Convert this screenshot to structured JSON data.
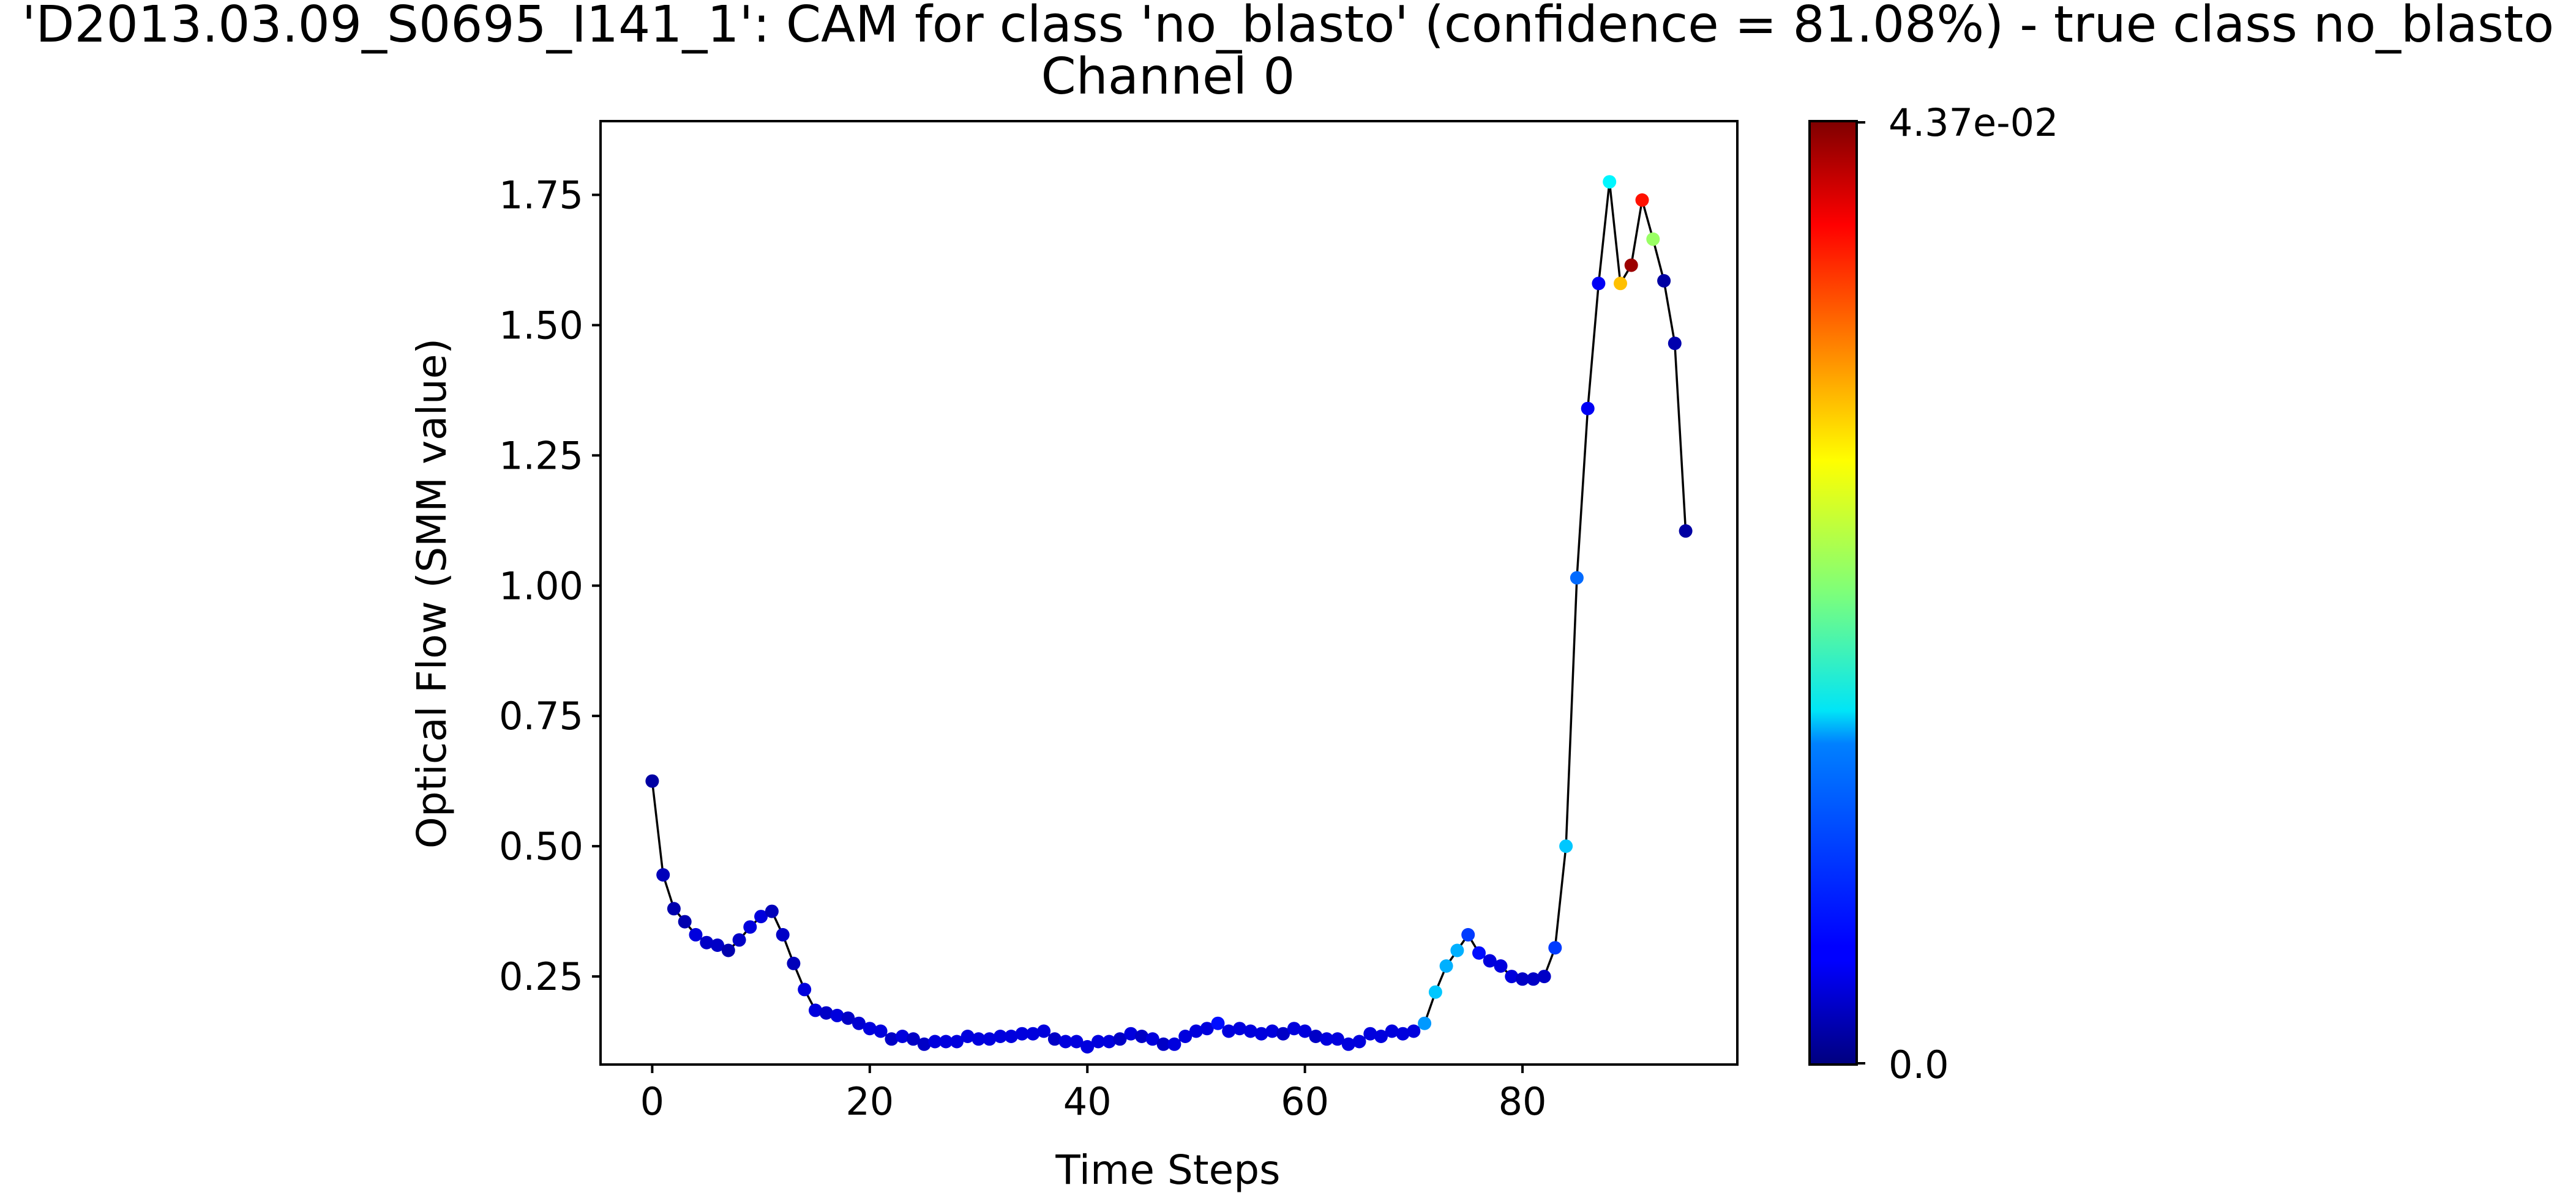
{
  "chart_data": {
    "type": "scatter",
    "title": "'D2013.03.09_S0695_I141_1': CAM for class 'no_blasto' (confidence = 81.08%) - true class no_blasto",
    "subtitle": "Channel 0",
    "xlabel": "Time Steps",
    "ylabel": "Optical Flow (SMM value)",
    "xlim": [
      -4.75,
      99.75
    ],
    "ylim": [
      0.081,
      1.8915
    ],
    "x_ticks": [
      0,
      20,
      40,
      60,
      80
    ],
    "y_ticks": [
      0.25,
      0.5,
      0.75,
      1.0,
      1.25,
      1.5,
      1.75
    ],
    "y_tick_labels": [
      "0.25",
      "0.50",
      "0.75",
      "1.00",
      "1.25",
      "1.50",
      "1.75"
    ],
    "grid": false,
    "line_color": "#000000",
    "colormap": "jet",
    "colorbar": {
      "min": 0.0,
      "max": 0.0437,
      "min_label": "0.0",
      "max_label": "4.37e-02"
    },
    "series": [
      {
        "x": [
          0,
          1,
          2,
          3,
          4,
          5,
          6,
          7,
          8,
          9,
          10,
          11,
          12,
          13,
          14,
          15,
          16,
          17,
          18,
          19,
          20,
          21,
          22,
          23,
          24,
          25,
          26,
          27,
          28,
          29,
          30,
          31,
          32,
          33,
          34,
          35,
          36,
          37,
          38,
          39,
          40,
          41,
          42,
          43,
          44,
          45,
          46,
          47,
          48,
          49,
          50,
          51,
          52,
          53,
          54,
          55,
          56,
          57,
          58,
          59,
          60,
          61,
          62,
          63,
          64,
          65,
          66,
          67,
          68,
          69,
          70,
          71,
          72,
          73,
          74,
          75,
          76,
          77,
          78,
          79,
          80,
          81,
          82,
          83,
          84,
          85,
          86,
          87,
          88,
          89,
          90,
          91,
          92,
          93,
          94,
          95
        ],
        "y": [
          0.625,
          0.445,
          0.38,
          0.355,
          0.33,
          0.315,
          0.31,
          0.3,
          0.32,
          0.345,
          0.365,
          0.375,
          0.33,
          0.275,
          0.225,
          0.185,
          0.18,
          0.175,
          0.17,
          0.16,
          0.15,
          0.145,
          0.13,
          0.135,
          0.13,
          0.12,
          0.125,
          0.125,
          0.125,
          0.135,
          0.13,
          0.13,
          0.135,
          0.135,
          0.14,
          0.14,
          0.145,
          0.13,
          0.125,
          0.125,
          0.115,
          0.125,
          0.125,
          0.13,
          0.14,
          0.135,
          0.13,
          0.12,
          0.12,
          0.135,
          0.145,
          0.15,
          0.16,
          0.145,
          0.15,
          0.145,
          0.14,
          0.145,
          0.14,
          0.15,
          0.145,
          0.135,
          0.13,
          0.13,
          0.12,
          0.125,
          0.14,
          0.135,
          0.145,
          0.14,
          0.145,
          0.16,
          0.22,
          0.27,
          0.3,
          0.33,
          0.295,
          0.28,
          0.27,
          0.25,
          0.245,
          0.245,
          0.25,
          0.305,
          0.5,
          1.015,
          1.34,
          1.58,
          1.775,
          1.58,
          1.615,
          1.74,
          1.665,
          1.585,
          1.465,
          1.105
        ],
        "cam": [
          0.0015,
          0.0025,
          0.002,
          0.002,
          0.004,
          0.003,
          0.003,
          0.002,
          0.003,
          0.004,
          0.004,
          0.0025,
          0.003,
          0.0025,
          0.004,
          0.004,
          0.003,
          0.004,
          0.003,
          0.0035,
          0.004,
          0.004,
          0.003,
          0.004,
          0.003,
          0.003,
          0.004,
          0.004,
          0.004,
          0.004,
          0.004,
          0.004,
          0.004,
          0.004,
          0.004,
          0.004,
          0.004,
          0.003,
          0.004,
          0.004,
          0.004,
          0.004,
          0.004,
          0.003,
          0.004,
          0.003,
          0.004,
          0.003,
          0.004,
          0.004,
          0.004,
          0.004,
          0.006,
          0.004,
          0.004,
          0.004,
          0.004,
          0.004,
          0.003,
          0.004,
          0.004,
          0.003,
          0.004,
          0.004,
          0.004,
          0.004,
          0.004,
          0.004,
          0.004,
          0.004,
          0.004,
          0.012,
          0.014,
          0.013,
          0.013,
          0.008,
          0.006,
          0.004,
          0.004,
          0.004,
          0.003,
          0.003,
          0.003,
          0.008,
          0.014,
          0.01,
          0.005,
          0.005,
          0.016,
          0.03,
          0.0425,
          0.0375,
          0.023,
          0.0015,
          0.002,
          0.0015
        ]
      }
    ]
  }
}
